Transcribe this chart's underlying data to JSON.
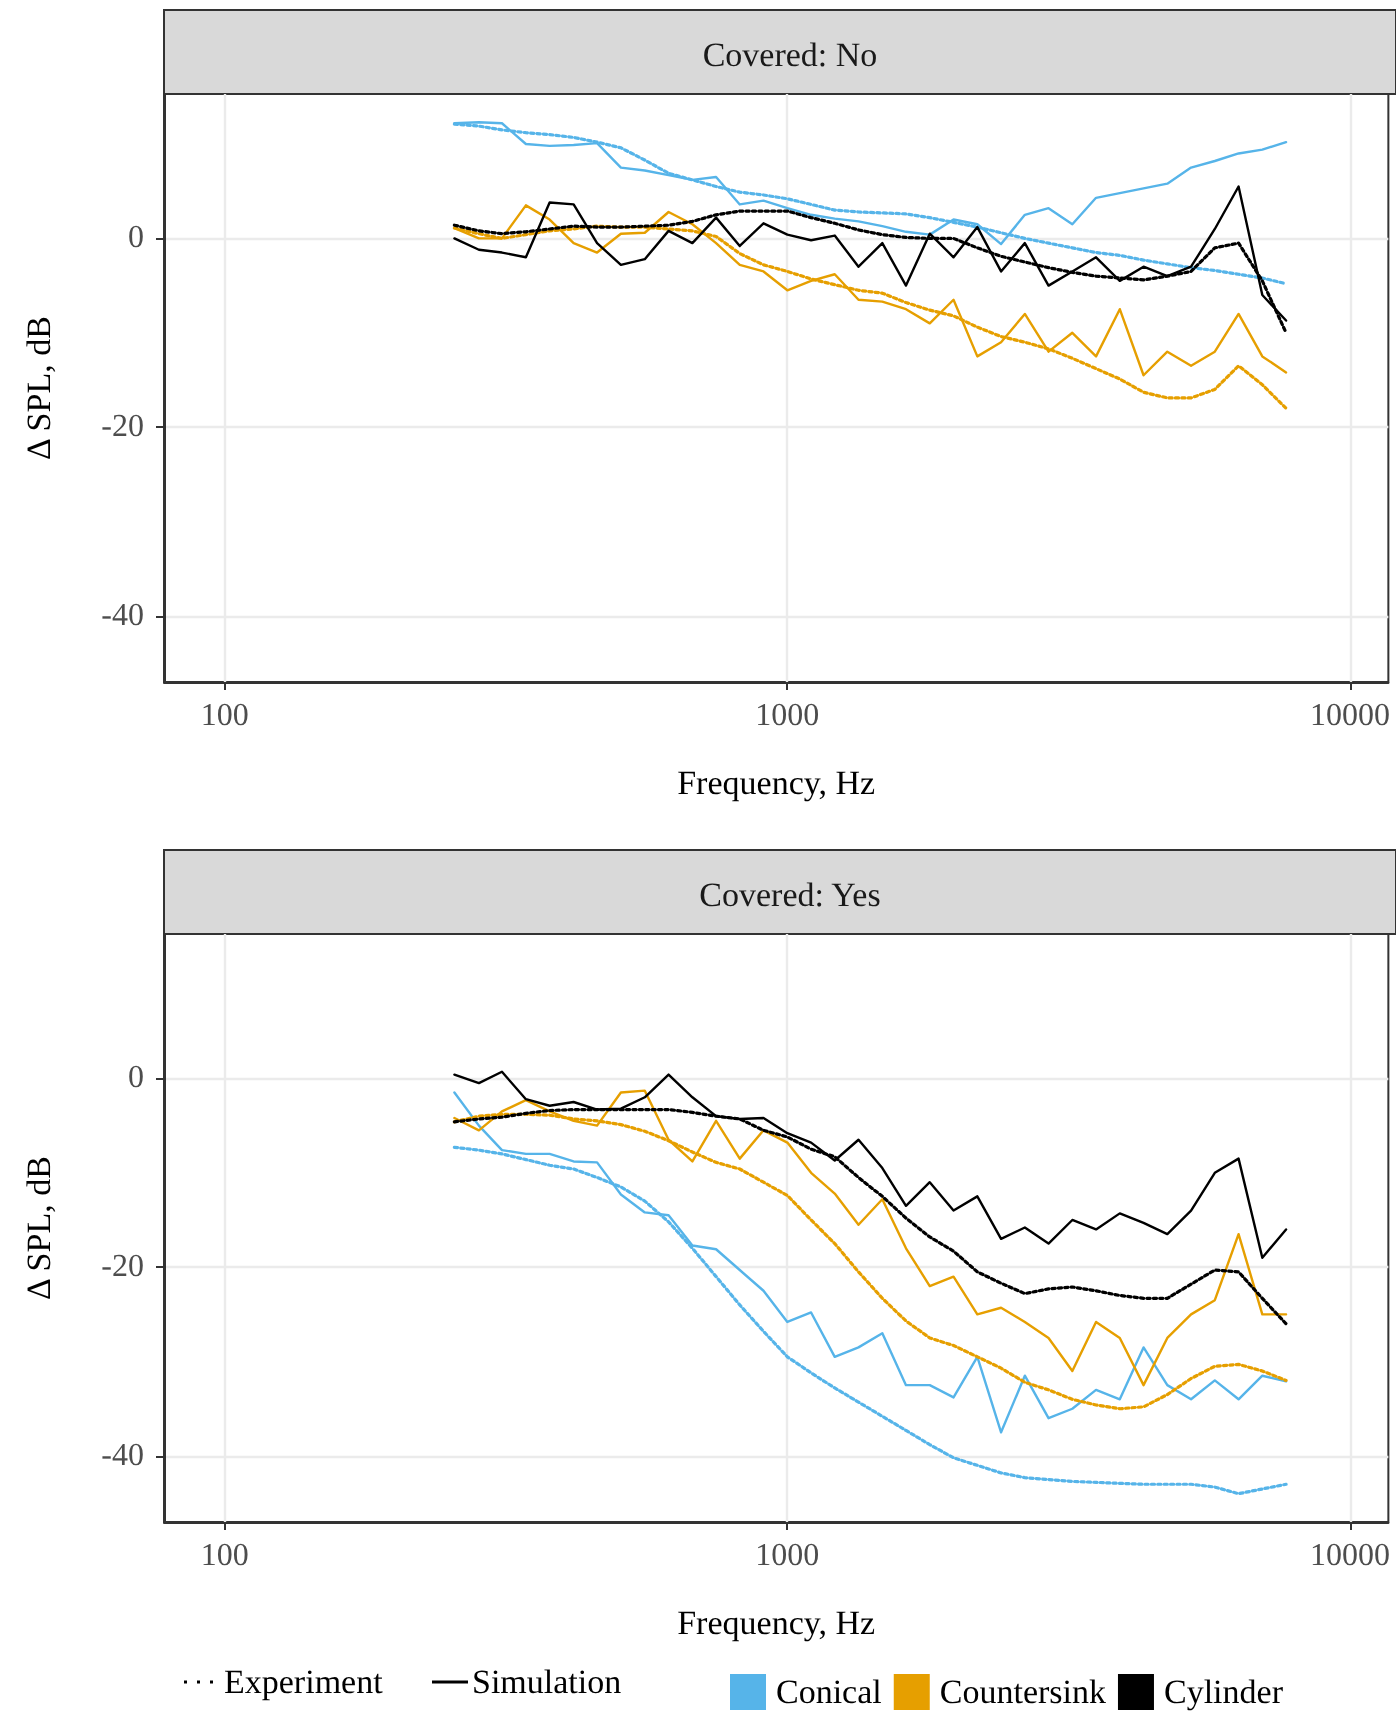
{
  "chart_data": [
    {
      "type": "line",
      "title": "Covered: No",
      "xlabel": "Frequency, Hz",
      "ylabel": "Δ SPL, dB",
      "log": "x",
      "xlim": [
        78,
        11700
      ],
      "xticks": [
        100,
        1000,
        10000
      ],
      "ylim": [
        -47,
        15.3
      ],
      "yticks": [
        0,
        -20,
        -40
      ],
      "grid": true,
      "legend": false,
      "marker": "none",
      "x": [
        256,
        283,
        311,
        343,
        378,
        417,
        459,
        506,
        558,
        615,
        678,
        747,
        823,
        907,
        1000,
        1102,
        1214,
        1338,
        1475,
        1625,
        1791,
        1974,
        2176,
        2398,
        2643,
        2912,
        3210,
        3537,
        3898,
        4296,
        4735,
        5218,
        5751,
        6338,
        6985,
        7698
      ],
      "series": [
        {
          "color": "#56b4e9",
          "line_style": "dotted",
          "values": [
            12.1,
            11.9,
            11.5,
            11.2,
            11,
            10.7,
            10.2,
            9.6,
            8.3,
            6.9,
            6.2,
            5.5,
            4.9,
            4.6,
            4.2,
            3.6,
            3,
            2.8,
            2.7,
            2.6,
            2.2,
            1.7,
            1.2,
            0.6,
            0,
            -0.5,
            -1,
            -1.5,
            -1.8,
            -2.3,
            -2.7,
            -3.1,
            -3.4,
            -3.8,
            -4.2,
            -4.8
          ]
        },
        {
          "color": "#56b4e9",
          "line_style": "solid",
          "values": [
            12.2,
            12.3,
            12.2,
            10,
            9.8,
            9.9,
            10.1,
            7.5,
            7.2,
            6.7,
            6.2,
            6.5,
            3.6,
            4,
            3.2,
            2.5,
            2.1,
            1.8,
            1.3,
            0.7,
            0.4,
            2,
            1.5,
            -0.6,
            2.5,
            3.2,
            1.5,
            4.3,
            4.8,
            5.3,
            5.8,
            7.5,
            8.2,
            9,
            9.4,
            10.2
          ]
        },
        {
          "color": "#e69f00",
          "line_style": "dotted",
          "values": [
            1.1,
            0.5,
            0,
            0.4,
            0.8,
            1,
            1.3,
            1.2,
            1.2,
            1,
            0.8,
            0.2,
            -1.6,
            -2.8,
            -3.5,
            -4.3,
            -4.9,
            -5.5,
            -5.8,
            -6.8,
            -7.6,
            -8.2,
            -9.4,
            -10.4,
            -11,
            -11.7,
            -12.7,
            -13.8,
            -14.9,
            -16.3,
            -16.9,
            -16.9,
            -16,
            -13.5,
            -15.5,
            -18
          ]
        },
        {
          "color": "#e69f00",
          "line_style": "solid",
          "values": [
            1.1,
            0,
            0,
            3.5,
            2,
            -0.5,
            -1.5,
            0.5,
            0.6,
            2.8,
            1.5,
            -0.5,
            -2.8,
            -3.5,
            -5.5,
            -4.5,
            -3.8,
            -6.5,
            -6.7,
            -7.5,
            -9,
            -6.5,
            -12.5,
            -11,
            -8,
            -12,
            -10,
            -12.5,
            -7.5,
            -14.5,
            -12,
            -13.5,
            -12,
            -8,
            -12.5,
            -14.2
          ]
        },
        {
          "color": "#000000",
          "line_style": "dotted",
          "values": [
            1.4,
            0.8,
            0.5,
            0.7,
            1,
            1.3,
            1.2,
            1.2,
            1.3,
            1.4,
            1.8,
            2.5,
            2.9,
            2.9,
            2.9,
            2.2,
            1.6,
            0.9,
            0.4,
            0.1,
            0,
            0,
            -1,
            -1.9,
            -2.5,
            -3.1,
            -3.6,
            -4,
            -4.2,
            -4.4,
            -4,
            -3.5,
            -1,
            -0.5,
            -4.5,
            -10
          ]
        },
        {
          "color": "#000000",
          "line_style": "solid",
          "values": [
            0,
            -1.2,
            -1.5,
            -2,
            3.8,
            3.6,
            -0.5,
            -2.8,
            -2.2,
            0.8,
            -0.5,
            2.2,
            -0.8,
            1.6,
            0.4,
            -0.2,
            0.3,
            -3,
            -0.5,
            -5,
            0.5,
            -2,
            1.2,
            -3.5,
            -0.5,
            -5,
            -3.5,
            -2,
            -4.5,
            -3,
            -4,
            -3,
            1,
            5.5,
            -6,
            -8.7
          ]
        }
      ]
    },
    {
      "type": "line",
      "title": "Covered: Yes",
      "xlabel": "Frequency, Hz",
      "ylabel": "Δ SPL, dB",
      "log": "x",
      "xlim": [
        78,
        11700
      ],
      "xticks": [
        100,
        1000,
        10000
      ],
      "ylim": [
        -47,
        15.3
      ],
      "yticks": [
        0,
        -20,
        -40
      ],
      "grid": true,
      "legend": "bottom",
      "marker": "none",
      "annotations": [
        "Experiment",
        "Simulation"
      ],
      "x": [
        256,
        283,
        311,
        343,
        378,
        417,
        459,
        506,
        558,
        615,
        678,
        747,
        823,
        907,
        1000,
        1102,
        1214,
        1338,
        1475,
        1625,
        1791,
        1974,
        2176,
        2398,
        2643,
        2912,
        3210,
        3537,
        3898,
        4296,
        4735,
        5218,
        5751,
        6338,
        6985,
        7698
      ],
      "series": [
        {
          "color": "#56b4e9",
          "line_style": "dotted",
          "values": [
            -7.3,
            -7.6,
            -8,
            -8.6,
            -9.2,
            -9.6,
            -10.5,
            -11.5,
            -13,
            -15.2,
            -18,
            -21,
            -24,
            -26.8,
            -29.5,
            -31.2,
            -32.8,
            -34.3,
            -35.8,
            -37.3,
            -38.8,
            -40.2,
            -41,
            -41.8,
            -42.3,
            -42.5,
            -42.7,
            -42.8,
            -42.9,
            -43,
            -43,
            -43,
            -43.3,
            -44,
            -43.5,
            -43
          ]
        },
        {
          "name": "Conical",
          "color": "#56b4e9",
          "line_style": "solid",
          "values": [
            -1.5,
            -5,
            -7.6,
            -8,
            -8,
            -8.8,
            -8.9,
            -12.3,
            -14.2,
            -14.5,
            -17.7,
            -18.1,
            -20.3,
            -22.5,
            -25.8,
            -24.8,
            -29.5,
            -28.5,
            -27,
            -32.5,
            -32.5,
            -33.8,
            -29.5,
            -37.5,
            -31.5,
            -36,
            -35,
            -33,
            -34,
            -28.5,
            -32.5,
            -34,
            -32,
            -34,
            -31.5,
            -32.1
          ]
        },
        {
          "color": "#e69f00",
          "line_style": "dotted",
          "values": [
            -4.6,
            -4,
            -3.8,
            -3.8,
            -3.9,
            -4.3,
            -4.5,
            -4.9,
            -5.6,
            -6.6,
            -7.8,
            -8.9,
            -9.6,
            -11,
            -12.4,
            -15,
            -17.5,
            -20.5,
            -23.3,
            -25.7,
            -27.5,
            -28.3,
            -29.5,
            -30.7,
            -32.2,
            -33,
            -34,
            -34.6,
            -35,
            -34.8,
            -33.5,
            -31.8,
            -30.5,
            -30.3,
            -31,
            -32
          ]
        },
        {
          "name": "Countersink",
          "color": "#e69f00",
          "line_style": "solid",
          "values": [
            -4.2,
            -5.5,
            -3.5,
            -2.3,
            -3.5,
            -4.5,
            -5,
            -1.5,
            -1.3,
            -6.5,
            -8.8,
            -4.5,
            -8.5,
            -5.5,
            -6.8,
            -10,
            -12.2,
            -15.5,
            -12.8,
            -18,
            -22,
            -21,
            -25,
            -24.3,
            -25.8,
            -27.5,
            -31,
            -25.8,
            -27.5,
            -32.5,
            -27.5,
            -25,
            -23.5,
            -16.5,
            -25,
            -25
          ]
        },
        {
          "color": "#000000",
          "line_style": "dotted",
          "values": [
            -4.6,
            -4.3,
            -4.1,
            -3.7,
            -3.4,
            -3.3,
            -3.3,
            -3.3,
            -3.3,
            -3.3,
            -3.6,
            -4,
            -4.3,
            -5.5,
            -6.2,
            -7.5,
            -8.3,
            -10.5,
            -12.5,
            -14.8,
            -16.8,
            -18.3,
            -20.5,
            -21.7,
            -22.8,
            -22.3,
            -22.1,
            -22.5,
            -23,
            -23.3,
            -23.3,
            -21.8,
            -20.3,
            -20.5,
            -23.3,
            -26
          ]
        },
        {
          "name": "Cylinder",
          "color": "#000000",
          "line_style": "solid",
          "values": [
            0.4,
            -0.5,
            0.7,
            -2.2,
            -2.9,
            -2.5,
            -3.3,
            -3.2,
            -2,
            0.4,
            -2,
            -4,
            -4.3,
            -4.2,
            -5.8,
            -6.8,
            -8.7,
            -6.5,
            -9.5,
            -13.5,
            -11,
            -14,
            -12.5,
            -17,
            -15.8,
            -17.5,
            -15,
            -16,
            -14.3,
            -15.3,
            -16.5,
            -14,
            -10,
            -8.5,
            -19,
            -16
          ]
        }
      ]
    }
  ]
}
